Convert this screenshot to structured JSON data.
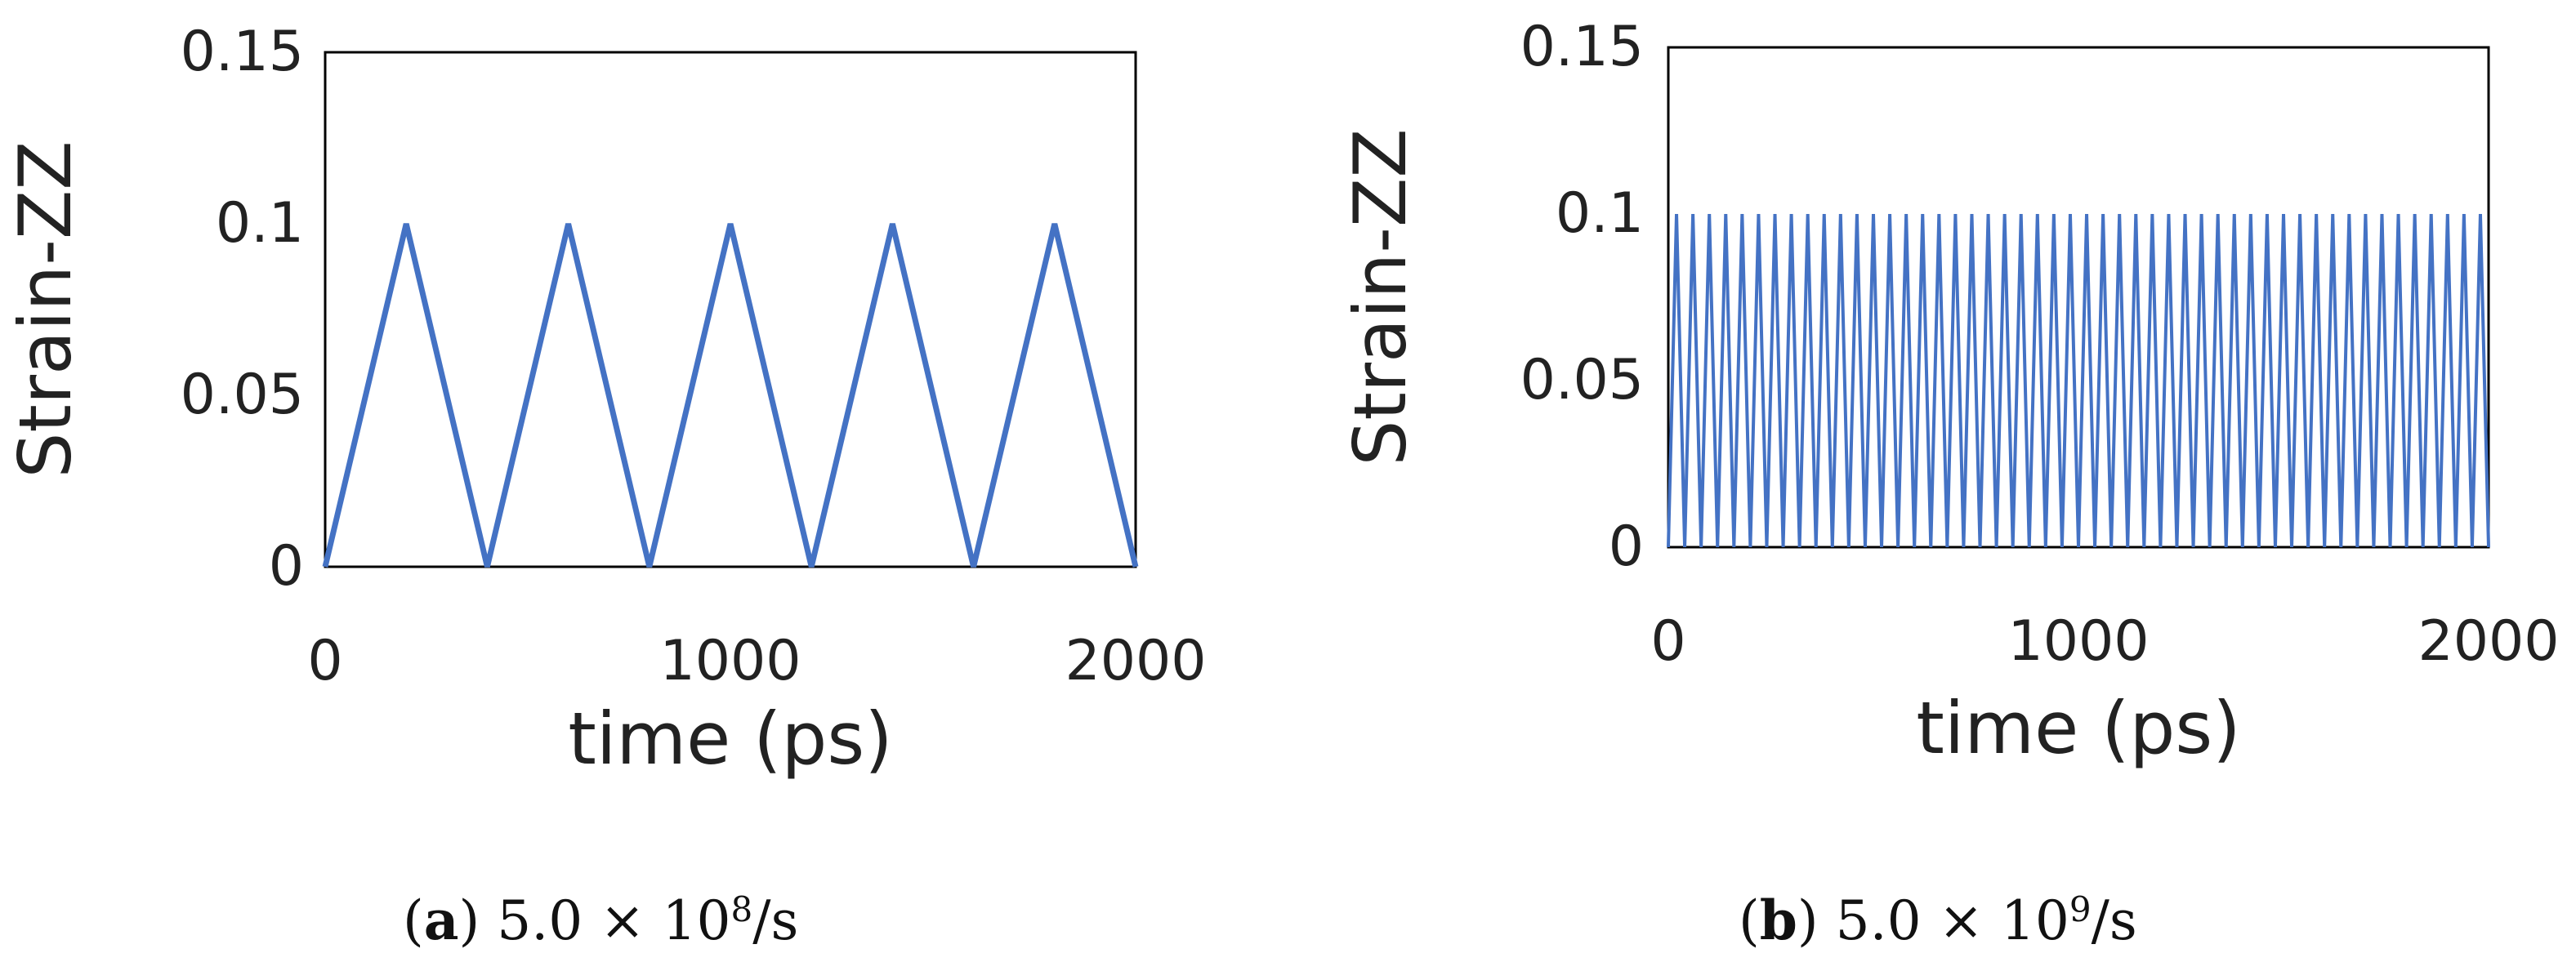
{
  "chart_data": [
    {
      "type": "line",
      "ylabel": "Strain-ZZ",
      "xlabel": "time (ps)",
      "xlim": [
        0,
        2000
      ],
      "ylim": [
        0,
        0.15
      ],
      "xticks": [
        "0",
        "1000",
        "2000"
      ],
      "yticks": [
        "0",
        "0.05",
        "0.1",
        "0.15"
      ],
      "grid": false,
      "line_color": "#4472C4",
      "caption": {
        "letter": "a",
        "text": "5.0 × 10",
        "exponent": "8",
        "unit": "/s"
      },
      "series": [
        {
          "x": [
            0,
            200,
            400,
            600,
            800,
            1000,
            1200,
            1400,
            1600,
            1800,
            2000
          ],
          "y": [
            0,
            0.1,
            0,
            0.1,
            0,
            0.1,
            0,
            0.1,
            0,
            0.1,
            0
          ]
        }
      ]
    },
    {
      "type": "line",
      "ylabel": "Strain-ZZ",
      "xlabel": "time (ps)",
      "xlim": [
        0,
        2000
      ],
      "ylim": [
        0,
        0.15
      ],
      "xticks": [
        "0",
        "1000",
        "2000"
      ],
      "yticks": [
        "0",
        "0.05",
        "0.1",
        "0.15"
      ],
      "grid": false,
      "line_color": "#4472C4",
      "caption": {
        "letter": "b",
        "text": "5.0 × 10",
        "exponent": "9",
        "unit": "/s"
      },
      "series": [
        {
          "period": 40,
          "amplitude": 0.1,
          "waveform": "triangle",
          "x_start": 0,
          "x_end": 2000
        }
      ]
    }
  ]
}
